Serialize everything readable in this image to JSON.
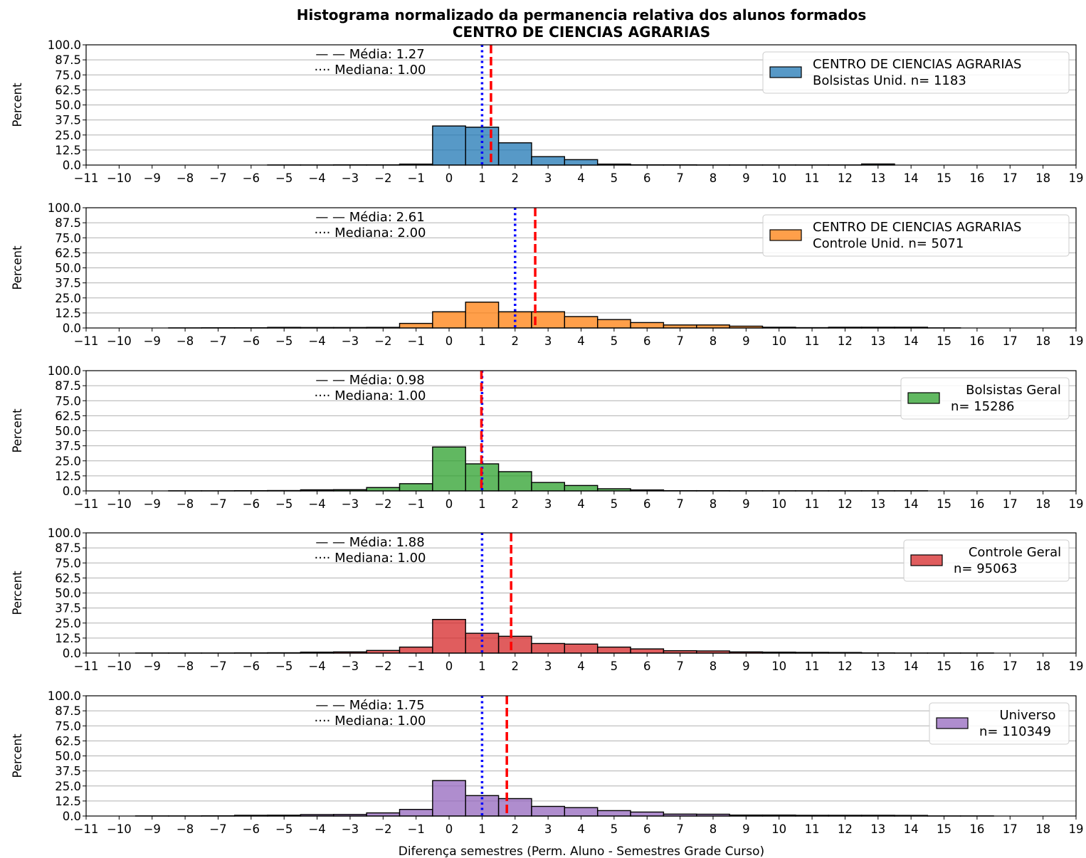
{
  "chart_data": {
    "type": "bar",
    "title": "Histograma normalizado da permanencia relativa dos alunos formados",
    "subtitle": "CENTRO DE CIENCIAS AGRARIAS",
    "xlabel": "Diferença semestres (Perm. Aluno - Semestres Grade Curso)",
    "ylabel": "Percent",
    "xlim": [
      -11,
      19
    ],
    "ylim": [
      0,
      100
    ],
    "yticks": [
      "0.0",
      "12.5",
      "25.0",
      "37.5",
      "50.0",
      "62.5",
      "75.0",
      "87.5",
      "100.0"
    ],
    "xticks": [
      "−11",
      "−10",
      "−9",
      "−8",
      "−7",
      "−6",
      "−5",
      "−4",
      "−3",
      "−2",
      "−1",
      "0",
      "1",
      "2",
      "3",
      "4",
      "5",
      "6",
      "7",
      "8",
      "9",
      "10",
      "11",
      "12",
      "13",
      "14",
      "15",
      "16",
      "17",
      "18",
      "19"
    ],
    "grid": "horizontal",
    "legend_position": "top-right",
    "mean_line_color": "#ff0000",
    "median_line_color": "#0000ff",
    "panels": [
      {
        "legend_line1": "CENTRO DE CIENCIAS AGRARIAS",
        "legend_line2": "Bolsistas Unid. n= 1183",
        "color": "#1f77b4",
        "mean_label": "— — Média: 1.27",
        "median_label": "···· Mediana: 1.00",
        "mean": 1.27,
        "median": 1.0,
        "bins": [
          -5,
          -4,
          -3,
          -2,
          -1,
          0,
          1,
          2,
          3,
          4,
          5,
          6,
          7,
          8,
          9,
          10,
          11,
          12,
          13
        ],
        "values": [
          0.1,
          0.1,
          0.2,
          0.2,
          0.8,
          32.5,
          31.5,
          18.5,
          7.0,
          4.5,
          0.8,
          0.2,
          0.2,
          0.1,
          0.1,
          0.1,
          0.1,
          0.1,
          0.9
        ]
      },
      {
        "legend_line1": "CENTRO DE CIENCIAS AGRARIAS",
        "legend_line2": "Controle Unid. n= 5071",
        "color": "#ff7f0e",
        "mean_label": "— — Média: 2.61",
        "median_label": "···· Mediana: 2.00",
        "mean": 2.61,
        "median": 2.0,
        "bins": [
          -8,
          -7,
          -6,
          -5,
          -4,
          -3,
          -2,
          -1,
          0,
          1,
          2,
          3,
          4,
          5,
          6,
          7,
          8,
          9,
          10,
          11,
          12,
          13,
          14,
          15
        ],
        "values": [
          0.1,
          0.2,
          0.2,
          0.5,
          0.4,
          0.4,
          0.5,
          3.8,
          13.5,
          21.5,
          13.5,
          13.5,
          9.5,
          7.0,
          4.5,
          2.5,
          2.5,
          1.5,
          0.6,
          0.3,
          0.6,
          0.6,
          0.6,
          0.1
        ]
      },
      {
        "legend_line1": "Bolsistas Geral",
        "legend_line2": "n= 15286",
        "color": "#2ca02c",
        "mean_label": "— — Média: 0.98",
        "median_label": "···· Mediana: 1.00",
        "mean": 0.98,
        "median": 1.0,
        "bins": [
          -8,
          -7,
          -6,
          -5,
          -4,
          -3,
          -2,
          -1,
          0,
          1,
          2,
          3,
          4,
          5,
          6,
          7,
          8,
          9,
          10,
          11,
          12,
          13,
          14
        ],
        "values": [
          0.1,
          0.1,
          0.2,
          0.3,
          0.9,
          1.0,
          2.8,
          6.0,
          36.5,
          22.5,
          16.0,
          7.0,
          4.5,
          1.8,
          0.8,
          0.2,
          0.2,
          0.1,
          0.1,
          0.1,
          0.1,
          0.1,
          0.1
        ]
      },
      {
        "legend_line1": "Controle Geral",
        "legend_line2": "n= 95063",
        "color": "#d62728",
        "mean_label": "— — Média: 1.88",
        "median_label": "···· Mediana: 1.00",
        "mean": 1.88,
        "median": 1.0,
        "bins": [
          -9,
          -8,
          -7,
          -6,
          -5,
          -4,
          -3,
          -2,
          -1,
          0,
          1,
          2,
          3,
          4,
          5,
          6,
          7,
          8,
          9,
          10,
          11,
          12,
          13,
          14,
          15,
          16
        ],
        "values": [
          0.1,
          0.1,
          0.1,
          0.2,
          0.3,
          0.8,
          1.0,
          2.2,
          5.0,
          28.0,
          16.5,
          14.0,
          8.0,
          7.5,
          5.0,
          3.5,
          2.0,
          1.8,
          1.0,
          0.8,
          0.6,
          0.5,
          0.2,
          0.1,
          0.1,
          0.1
        ]
      },
      {
        "legend_line1": "Universo",
        "legend_line2": "n= 110349",
        "color": "#9467bd",
        "mean_label": "— — Média: 1.75",
        "median_label": "···· Mediana: 1.00",
        "mean": 1.75,
        "median": 1.0,
        "bins": [
          -9,
          -8,
          -7,
          -6,
          -5,
          -4,
          -3,
          -2,
          -1,
          0,
          1,
          2,
          3,
          4,
          5,
          6,
          7,
          8,
          9,
          10,
          11,
          12,
          13,
          14,
          15,
          16
        ],
        "values": [
          0.1,
          0.1,
          0.2,
          0.6,
          0.7,
          1.2,
          1.3,
          2.6,
          5.5,
          29.5,
          17.0,
          14.5,
          8.0,
          7.0,
          4.5,
          3.3,
          1.6,
          1.5,
          0.8,
          0.8,
          0.6,
          0.6,
          0.6,
          0.5,
          0.1,
          0.1
        ]
      }
    ]
  }
}
